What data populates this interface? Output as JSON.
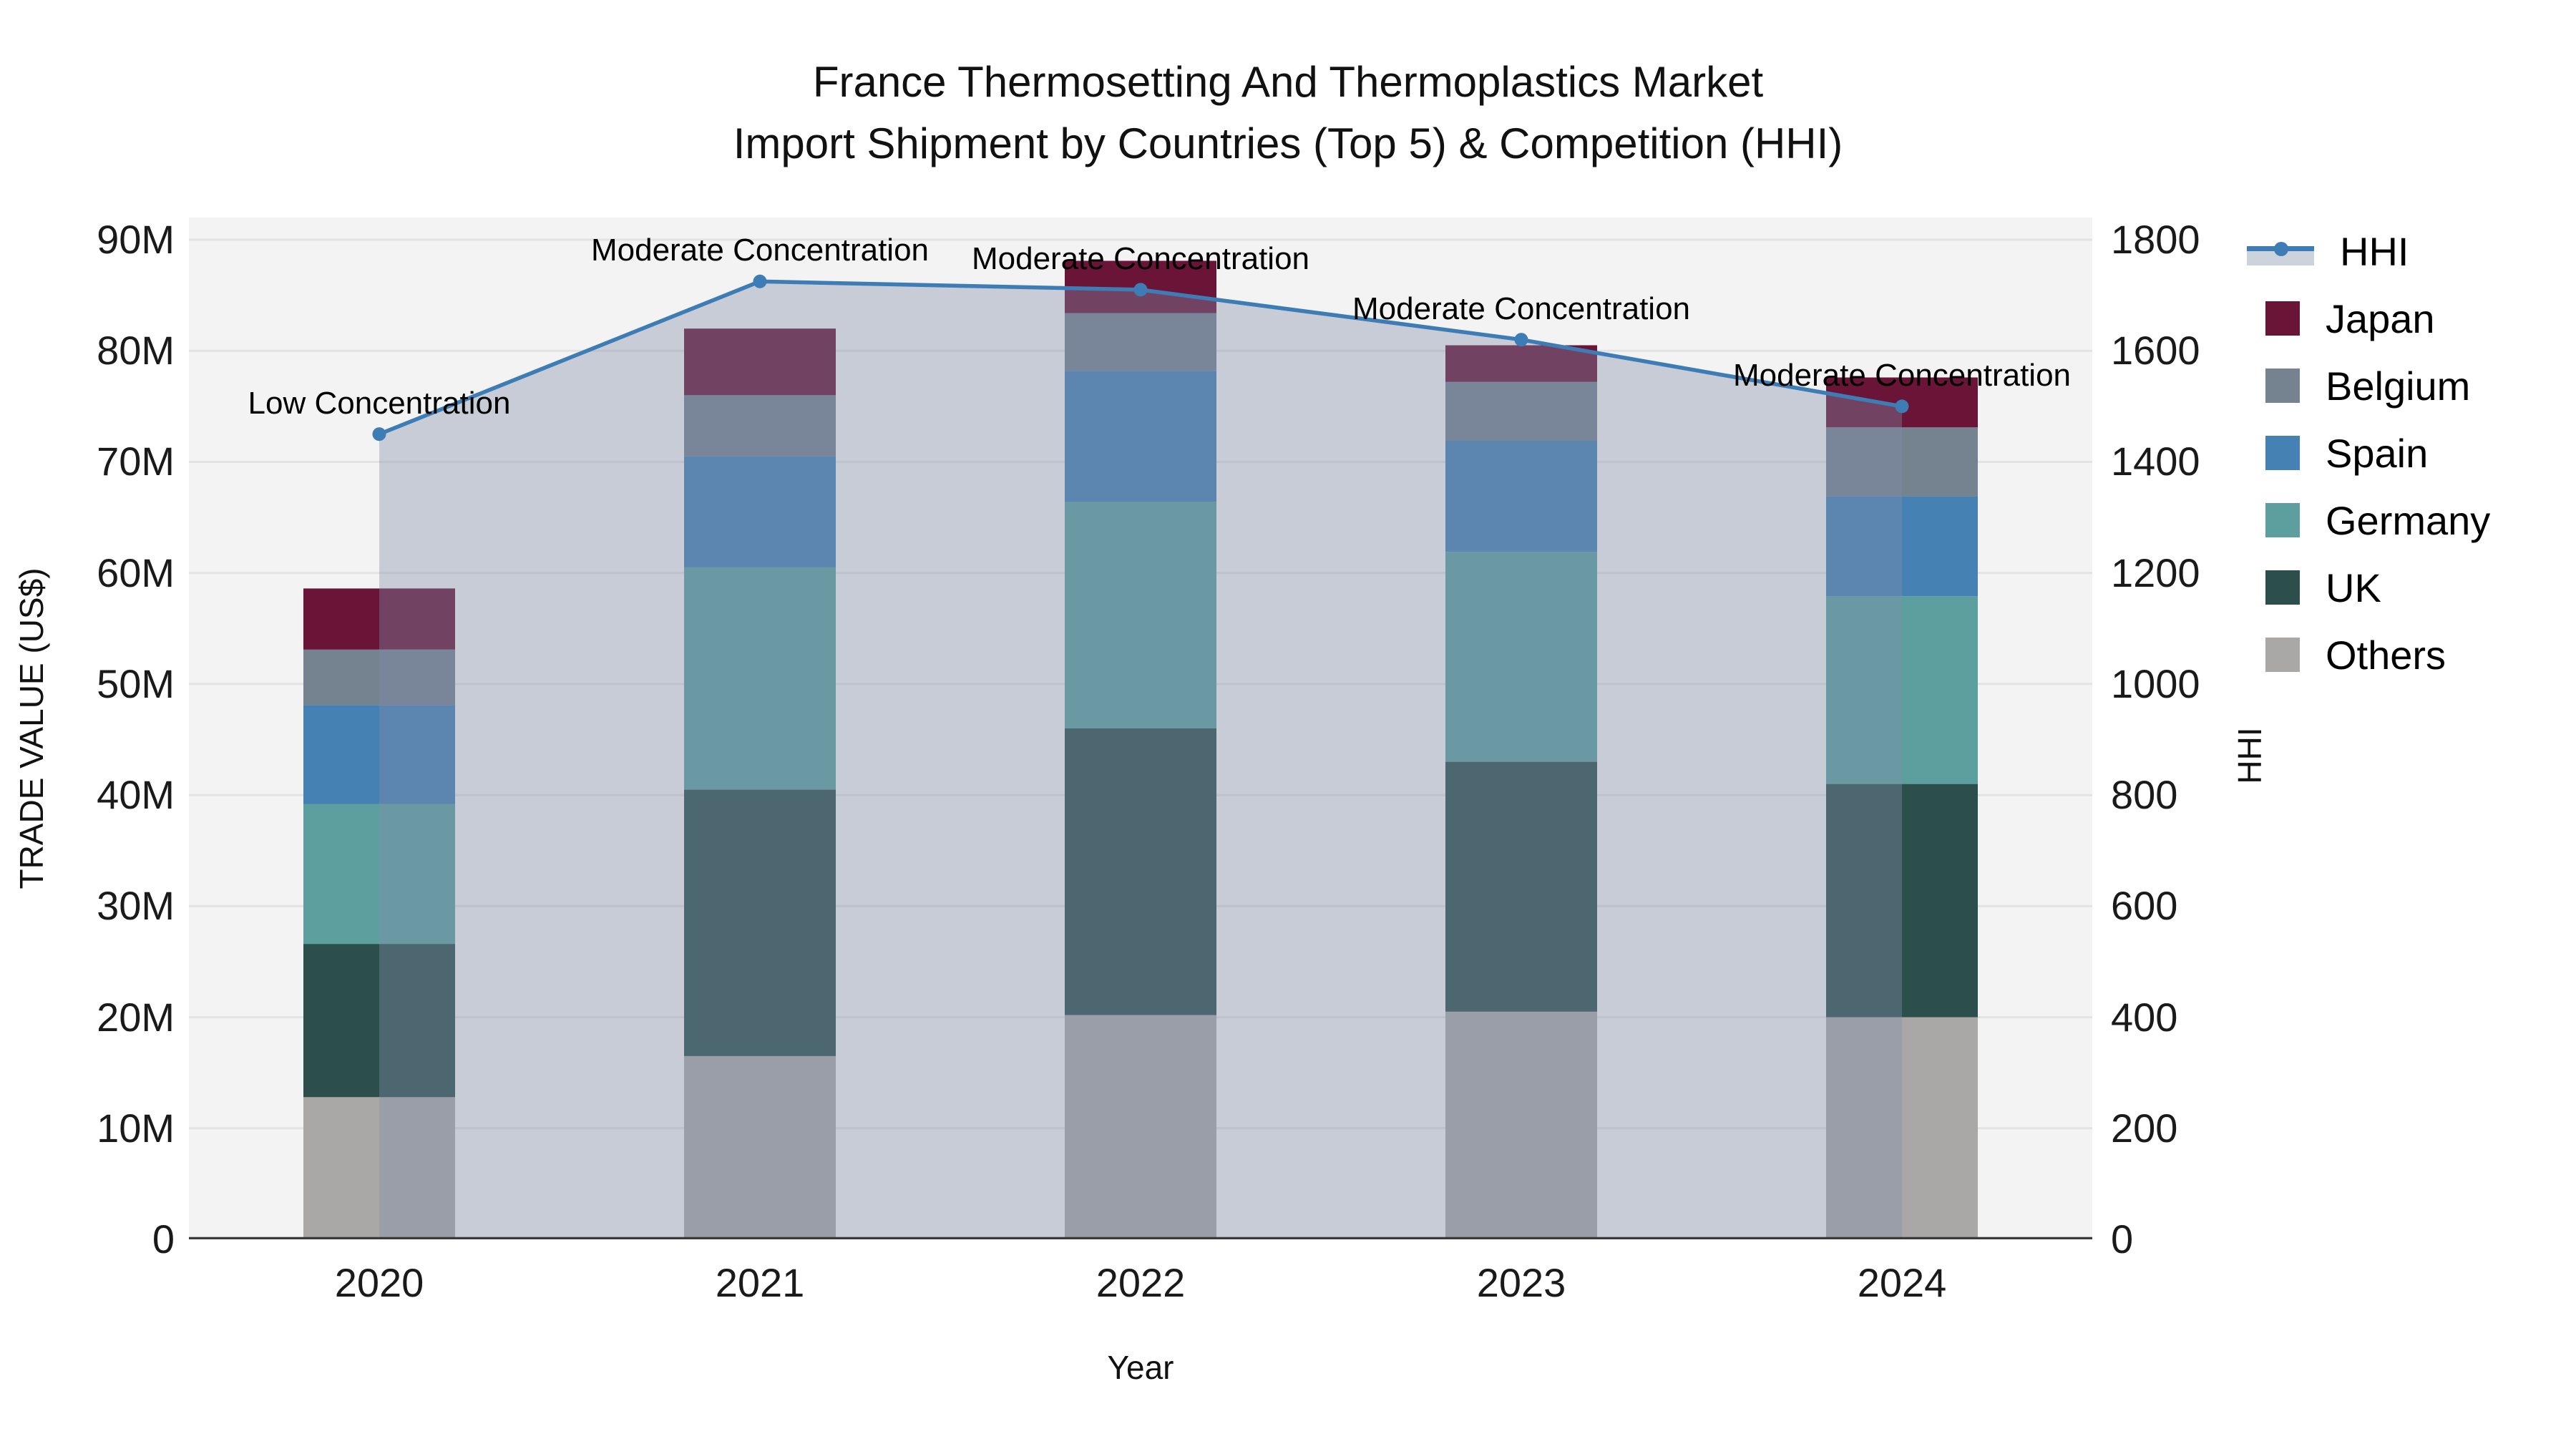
{
  "title": {
    "line1": "France Thermosetting And Thermoplastics Market",
    "line2": "Import Shipment by Countries (Top 5) & Competition (HHI)"
  },
  "axes": {
    "x_label": "Year",
    "y_left_label": "TRADE VALUE (US$)",
    "y_right_label": "HHI",
    "y_left_tick_labels": [
      "0",
      "10M",
      "20M",
      "30M",
      "40M",
      "50M",
      "60M",
      "70M",
      "80M",
      "90M"
    ],
    "y_left_tick_values": [
      0,
      10,
      20,
      30,
      40,
      50,
      60,
      70,
      80,
      90
    ],
    "y_right_tick_labels": [
      "0",
      "200",
      "400",
      "600",
      "800",
      "1000",
      "1200",
      "1400",
      "1600",
      "1800"
    ],
    "y_right_tick_values": [
      0,
      200,
      400,
      600,
      800,
      1000,
      1200,
      1400,
      1600,
      1800
    ]
  },
  "legend": {
    "items": [
      {
        "label": "HHI"
      },
      {
        "label": "Japan"
      },
      {
        "label": "Belgium"
      },
      {
        "label": "Spain"
      },
      {
        "label": "Germany"
      },
      {
        "label": "UK"
      },
      {
        "label": "Others"
      }
    ]
  },
  "chart_data": {
    "type": "combo: stacked-bar + line-area",
    "title": "France Thermosetting And Thermoplastics Market — Import Shipment by Countries (Top 5) & Competition (HHI)",
    "xlabel": "Year",
    "ylabel_left": "TRADE VALUE (US$)",
    "ylabel_right": "HHI",
    "unit": "US$ millions",
    "categories": [
      "2020",
      "2021",
      "2022",
      "2023",
      "2024"
    ],
    "stack_order_bottom_to_top": [
      "Others",
      "UK",
      "Germany",
      "Spain",
      "Belgium",
      "Japan"
    ],
    "series": [
      {
        "name": "Japan",
        "color": "#6a1437",
        "values": [
          5.5,
          6.0,
          4.7,
          3.3,
          4.5
        ]
      },
      {
        "name": "Belgium",
        "color": "#75828f",
        "values": [
          5.0,
          5.5,
          5.2,
          5.3,
          6.2
        ]
      },
      {
        "name": "Spain",
        "color": "#4681b4",
        "values": [
          8.9,
          10.0,
          11.8,
          10.0,
          9.0
        ]
      },
      {
        "name": "Germany",
        "color": "#5d9f9f",
        "values": [
          12.6,
          20.0,
          20.4,
          18.9,
          16.9
        ]
      },
      {
        "name": "UK",
        "color": "#2c4f4c",
        "values": [
          13.8,
          24.0,
          25.8,
          22.5,
          21.0
        ]
      },
      {
        "name": "Others",
        "color": "#a9a8a6",
        "values": [
          12.8,
          16.5,
          20.2,
          20.5,
          20.0
        ]
      }
    ],
    "bar_totals": [
      58.6,
      82.0,
      88.1,
      80.5,
      77.6
    ],
    "line_series": {
      "name": "HHI",
      "color": "#3d7cb5",
      "area_color": "rgba(128,142,170,0.38)",
      "legend_band_color": "#cdd3dc",
      "values": [
        1450,
        1725,
        1710,
        1620,
        1500
      ],
      "annotations": [
        "Low Concentration",
        "Moderate Concentration",
        "Moderate Concentration",
        "Moderate Concentration",
        "Moderate Concentration"
      ]
    },
    "ylim_left": [
      0,
      92
    ],
    "ylim_right": [
      0,
      1840
    ],
    "grid": true,
    "plot_bg_color": "#f3f3f3",
    "gridline_color": "#e3e3e3",
    "legend_position": "right-outside"
  }
}
